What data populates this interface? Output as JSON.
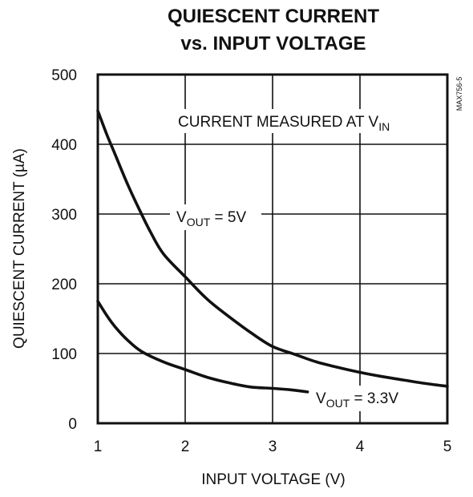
{
  "chart_data": {
    "type": "line",
    "title_line1": "QUIESCENT CURRENT",
    "title_line2": "vs. INPUT VOLTAGE",
    "xlabel": "INPUT VOLTAGE (V)",
    "ylabel": "QUIESCENT CURRENT (µA)",
    "xlim": [
      1,
      5
    ],
    "ylim": [
      0,
      500
    ],
    "x_ticks": [
      1,
      2,
      3,
      4,
      5
    ],
    "y_ticks": [
      0,
      100,
      200,
      300,
      400,
      500
    ],
    "grid": true,
    "figure_code": "MAX756-5",
    "annotation_top": {
      "main": "CURRENT MEASURED AT V",
      "sub": "IN"
    },
    "series": [
      {
        "name": "VOUT = 5V",
        "label_main": "V",
        "label_sub": "OUT",
        "label_tail": " = 5V",
        "x": [
          1.0,
          1.1,
          1.2,
          1.35,
          1.5,
          1.6,
          1.75,
          2.0,
          2.25,
          2.5,
          2.75,
          3.0,
          3.25,
          3.5,
          3.75,
          4.0,
          4.25,
          4.5,
          4.75,
          5.0
        ],
        "y": [
          448,
          415,
          385,
          340,
          300,
          275,
          243,
          210,
          178,
          153,
          130,
          110,
          99,
          88,
          80,
          73,
          67,
          62,
          57,
          53
        ]
      },
      {
        "name": "VOUT = 3.3V",
        "label_main": "V",
        "label_sub": "OUT",
        "label_tail": " = 3.3V",
        "x": [
          1.0,
          1.1,
          1.2,
          1.35,
          1.5,
          1.75,
          2.0,
          2.25,
          2.5,
          2.75,
          3.0,
          3.2,
          3.4
        ],
        "y": [
          175,
          155,
          138,
          118,
          103,
          88,
          77,
          66,
          58,
          52,
          50,
          48,
          45
        ]
      }
    ]
  }
}
